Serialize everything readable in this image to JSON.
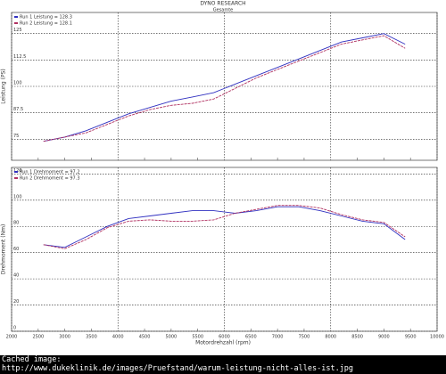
{
  "chart_data": [
    {
      "type": "line",
      "title": "DYNO RESEARCH",
      "subtitle": "Gesamte",
      "y_label": "Leistung (PS)",
      "x": [
        2600,
        3000,
        3400,
        3800,
        4200,
        4600,
        5000,
        5400,
        5800,
        6200,
        6600,
        7000,
        7400,
        7800,
        8200,
        8600,
        9000,
        9400
      ],
      "series": [
        {
          "name": "Run 1 Leistung = 128.3",
          "color": "#3030c0",
          "values": [
            74,
            76,
            79,
            83,
            87,
            90,
            93,
            95,
            97,
            101,
            105,
            109,
            113,
            117,
            121,
            123,
            125,
            120
          ]
        },
        {
          "name": "Run 2 Leistung = 128.1",
          "color": "#b03060",
          "values": [
            74,
            76,
            78,
            82,
            86,
            89,
            91,
            92,
            94,
            99,
            104,
            108,
            112,
            116,
            120,
            122,
            124,
            118
          ]
        }
      ],
      "xlim": [
        2000,
        10000
      ],
      "xticks": [
        2000,
        2500,
        3000,
        3500,
        4000,
        4500,
        5000,
        5500,
        6000,
        6500,
        7000,
        7500,
        8000,
        8500,
        9000,
        9500,
        10000
      ],
      "ylim": [
        65,
        135
      ],
      "yticks": [
        75,
        87.5,
        100,
        112.5,
        125
      ],
      "grid": true
    },
    {
      "type": "line",
      "y_label": "Drehmoment (Nm)",
      "x_label": "Motordrehzahl (rpm)",
      "x": [
        2600,
        3000,
        3400,
        3800,
        4200,
        4600,
        5000,
        5400,
        5800,
        6200,
        6600,
        7000,
        7400,
        7800,
        8200,
        8600,
        9000,
        9400
      ],
      "series": [
        {
          "name": "Run 1 Drehmoment = 97.2",
          "color": "#3030c0",
          "values": [
            66,
            64,
            72,
            80,
            86,
            88,
            90,
            92,
            92,
            90,
            92,
            95,
            95,
            92,
            88,
            84,
            82,
            70
          ]
        },
        {
          "name": "Run 2 Drehmoment = 97.3",
          "color": "#b03060",
          "values": [
            66,
            63,
            70,
            79,
            84,
            85,
            84,
            84,
            85,
            90,
            93,
            96,
            96,
            94,
            89,
            85,
            83,
            72
          ]
        }
      ],
      "xlim": [
        2000,
        10000
      ],
      "xticks": [
        2000,
        2500,
        3000,
        3500,
        4000,
        4500,
        5000,
        5500,
        6000,
        6500,
        7000,
        7500,
        8000,
        8500,
        9000,
        9500,
        10000
      ],
      "ylim": [
        0,
        125
      ],
      "yticks": [
        0,
        20,
        40,
        60,
        80,
        100,
        120
      ],
      "grid": true
    }
  ],
  "caption": {
    "label": "Cached image:",
    "url": "http://www.dukeklinik.de/images/Pruefstand/warum-leistung-nicht-alles-ist.jpg"
  }
}
